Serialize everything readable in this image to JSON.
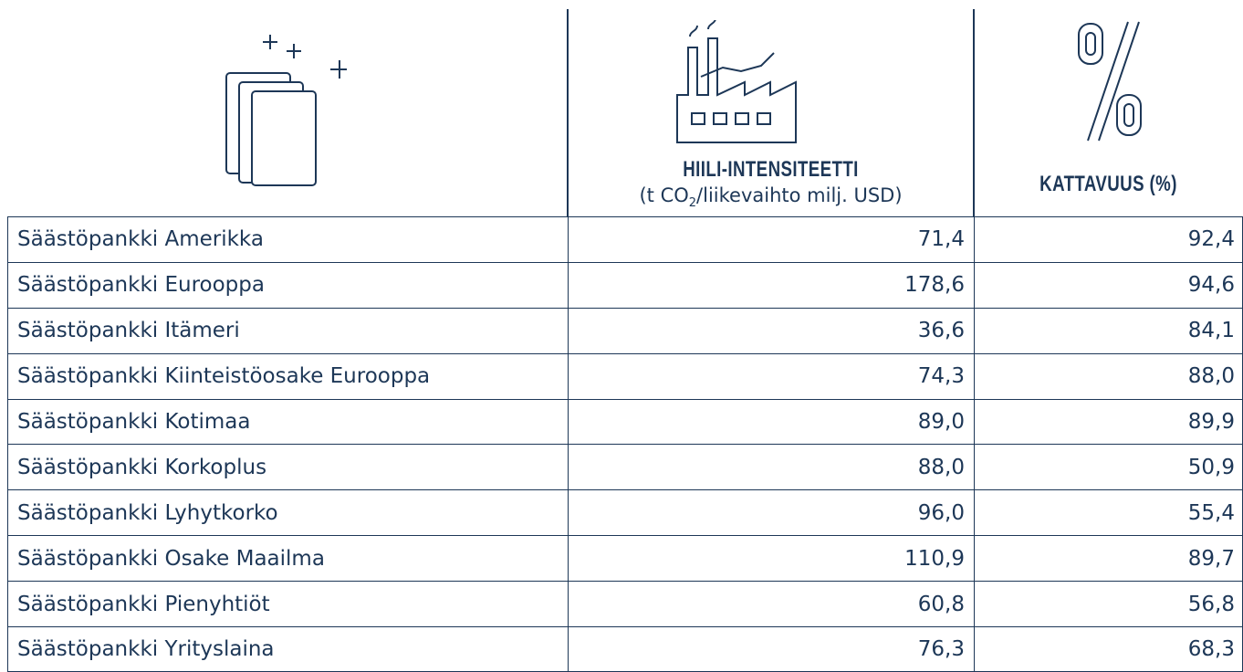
{
  "header": {
    "columns": [
      {
        "title": "HIILI-INTENSITEETTI",
        "unit": [
          "(t CO",
          "2",
          "/liikevaihto milj. USD)"
        ]
      },
      {
        "title": "KATTAVUUS (%)"
      }
    ]
  },
  "table": {
    "rows": [
      [
        "Säästöpankki Amerikka",
        "71,4",
        "92,4"
      ],
      [
        "Säästöpankki Eurooppa",
        "178,6",
        "94,6"
      ],
      [
        "Säästöpankki Itämeri",
        "36,6",
        "84,1"
      ],
      [
        "Säästöpankki Kiinteistöosake Eurooppa",
        "74,3",
        "88,0"
      ],
      [
        "Säästöpankki Kotimaa",
        "89,0",
        "89,9"
      ],
      [
        "Säästöpankki Korkoplus",
        "88,0",
        "50,9"
      ],
      [
        "Säästöpankki Lyhytkorko",
        "96,0",
        "55,4"
      ],
      [
        "Säästöpankki Osake Maailma",
        "110,9",
        "89,7"
      ],
      [
        "Säästöpankki Pienyhtiöt",
        "60,8",
        "56,8"
      ],
      [
        "Säästöpankki Yrityslaina",
        "76,3",
        "68,3"
      ]
    ]
  }
}
